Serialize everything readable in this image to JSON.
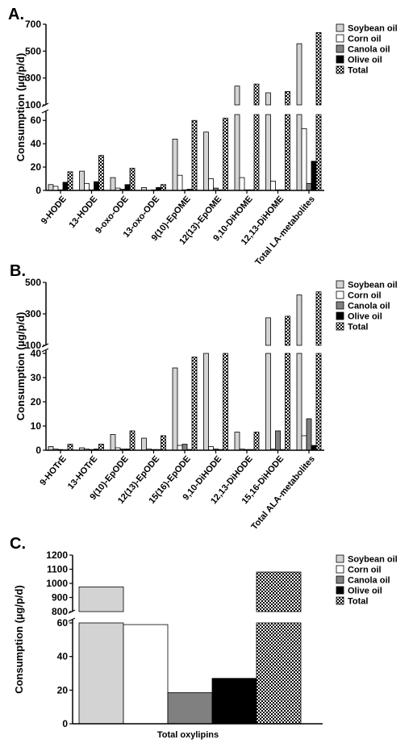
{
  "patterns": {
    "total": "checker"
  },
  "chart_data": [
    {
      "panel": "A.",
      "type": "bar",
      "ylabel": "Consumption (µg/p/d)",
      "categories": [
        "9-HODE",
        "13-HODE",
        "9-oxo-ODE",
        "13-oxo-ODE",
        "9(10)-EpOME",
        "12(13)-EpOME",
        "9,10-DiHOME",
        "12,13-DiHOME",
        "Total LA-metabolites"
      ],
      "y_axis_broken": true,
      "ylim_lower": [
        0,
        65
      ],
      "ylim_upper": [
        100,
        700
      ],
      "yticks_lower": [
        "0",
        "20",
        "40",
        "60"
      ],
      "yticks_upper": [
        "100",
        "300",
        "500",
        "700"
      ],
      "legend": "top-right",
      "series": [
        {
          "name": "Soybean oil",
          "color": "#d3d3d3",
          "values": [
            5,
            16.5,
            11,
            2.5,
            44,
            50,
            240,
            190,
            555
          ]
        },
        {
          "name": "Corn oil",
          "color": "#ffffff",
          "values": [
            3.5,
            6,
            2,
            0,
            13,
            10,
            11,
            8,
            53
          ]
        },
        {
          "name": "Canola oil",
          "color": "#808080",
          "values": [
            0.5,
            0.5,
            1,
            0.5,
            0.5,
            2,
            0.5,
            0.5,
            6
          ]
        },
        {
          "name": "Olive oil",
          "color": "#000000",
          "values": [
            7,
            7.5,
            5,
            2.5,
            1,
            0.5,
            0.5,
            0.5,
            25
          ]
        },
        {
          "name": "Total",
          "color": "pattern",
          "values": [
            16,
            30,
            19,
            5,
            60,
            62,
            255,
            200,
            638
          ]
        }
      ]
    },
    {
      "panel": "B.",
      "type": "bar",
      "ylabel": "Consumption (µg/p/d)",
      "categories": [
        "9-HOTrE",
        "13-HOTrE",
        "9(10)-EpODE",
        "12(13)-EpODE",
        "15(16)-EpODE",
        "9,10-DiHODE",
        "12,13-DiHODE",
        "15,16-DiHODE",
        "Total ALA-metabolites"
      ],
      "y_axis_broken": true,
      "ylim_lower": [
        0,
        40
      ],
      "ylim_upper": [
        100,
        500
      ],
      "yticks_lower": [
        "0",
        "10",
        "20",
        "30",
        "40"
      ],
      "yticks_upper": [
        "100",
        "300",
        "500"
      ],
      "legend": "top-right",
      "series": [
        {
          "name": "Soybean oil",
          "color": "#d3d3d3",
          "values": [
            1.5,
            1,
            6.5,
            5,
            34,
            100,
            7.5,
            275,
            420
          ]
        },
        {
          "name": "Corn oil",
          "color": "#ffffff",
          "values": [
            0.5,
            0.5,
            1,
            0.5,
            2,
            1.5,
            0.5,
            0.5,
            6
          ]
        },
        {
          "name": "Canola oil",
          "color": "#808080",
          "values": [
            0.3,
            0.3,
            0.5,
            0.3,
            2.5,
            0.5,
            0.3,
            8,
            13
          ]
        },
        {
          "name": "Olive oil",
          "color": "#000000",
          "values": [
            0.2,
            0.5,
            0.5,
            0.3,
            0.3,
            0.3,
            0.3,
            0.3,
            2
          ]
        },
        {
          "name": "Total",
          "color": "pattern",
          "values": [
            2.5,
            2.5,
            8,
            6,
            38.5,
            100,
            7.5,
            285,
            440
          ]
        }
      ]
    },
    {
      "panel": "C.",
      "type": "bar",
      "ylabel": "Consumption (µg/p/d)",
      "categories": [
        "Total oxylipins"
      ],
      "y_axis_broken": true,
      "ylim_lower": [
        0,
        60
      ],
      "ylim_upper": [
        800,
        1200
      ],
      "yticks_lower": [
        "0",
        "20",
        "40",
        "60"
      ],
      "yticks_upper": [
        "800",
        "900",
        "1000",
        "1100",
        "1200"
      ],
      "legend": "top-right",
      "series": [
        {
          "name": "Soybean oil",
          "color": "#d3d3d3",
          "values": [
            975
          ]
        },
        {
          "name": "Corn oil",
          "color": "#ffffff",
          "values": [
            59
          ]
        },
        {
          "name": "Canola oil",
          "color": "#808080",
          "values": [
            18.5
          ]
        },
        {
          "name": "Olive oil",
          "color": "#000000",
          "values": [
            27
          ]
        },
        {
          "name": "Total",
          "color": "pattern",
          "values": [
            1080
          ]
        }
      ]
    }
  ]
}
